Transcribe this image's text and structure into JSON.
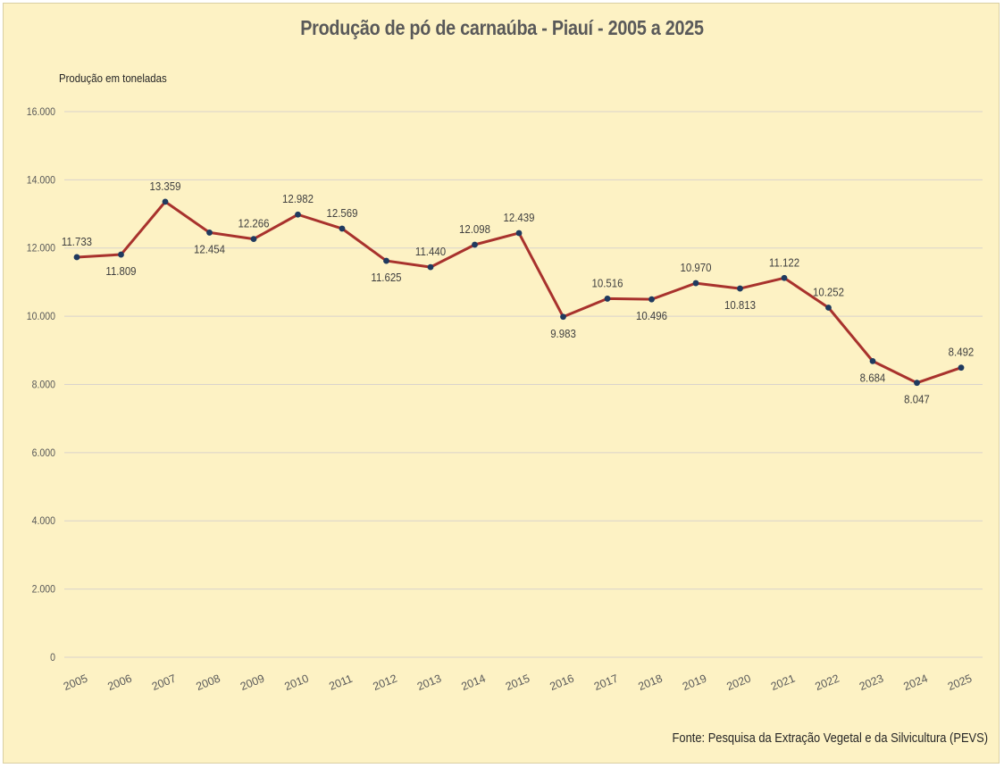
{
  "chart_data": {
    "type": "line",
    "title": "Produção de pó de carnaúba - Piauí - 2005 a 2025",
    "ylabel": "Produção em toneladas",
    "xlabel": "",
    "source": "Fonte: Pesquisa da Extração Vegetal e da Silvicultura (PEVS)",
    "ylim": [
      0,
      16000
    ],
    "yticks": [
      0,
      2000,
      4000,
      6000,
      8000,
      10000,
      12000,
      14000,
      16000
    ],
    "ytick_labels": [
      "0",
      "2.000",
      "4.000",
      "6.000",
      "8.000",
      "10.000",
      "12.000",
      "14.000",
      "16.000"
    ],
    "grid": true,
    "legend": "none",
    "categories": [
      "2005",
      "2006",
      "2007",
      "2008",
      "2009",
      "2010",
      "2011",
      "2012",
      "2013",
      "2014",
      "2015",
      "2016",
      "2017",
      "2018",
      "2019",
      "2020",
      "2021",
      "2022",
      "2023",
      "2024",
      "2025"
    ],
    "series": [
      {
        "values": [
          11733,
          11809,
          13359,
          12454,
          12266,
          12982,
          12569,
          11625,
          11440,
          12098,
          12439,
          9983,
          10516,
          10496,
          10970,
          10813,
          11122,
          10252,
          8684,
          8047,
          8492
        ],
        "data_labels": [
          "11.733",
          "11.809",
          "13.359",
          "12.454",
          "12.266",
          "12.982",
          "12.569",
          "11.625",
          "11.440",
          "12.098",
          "12.439",
          "9.983",
          "10.516",
          "10.496",
          "10.970",
          "10.813",
          "11.122",
          "10.252",
          "8.684",
          "8.047",
          "8.492"
        ],
        "label_position": [
          "above",
          "below",
          "above",
          "below",
          "above",
          "above",
          "above",
          "below",
          "above",
          "above",
          "above",
          "below",
          "above",
          "below",
          "above",
          "below",
          "above",
          "above",
          "below",
          "below",
          "above"
        ],
        "line_color": "#a8322d",
        "marker_color": "#1f3a5f"
      }
    ],
    "colors": {
      "background": "#fdf2c4",
      "gridline": "#d9d3cc",
      "text": "#595959"
    }
  }
}
